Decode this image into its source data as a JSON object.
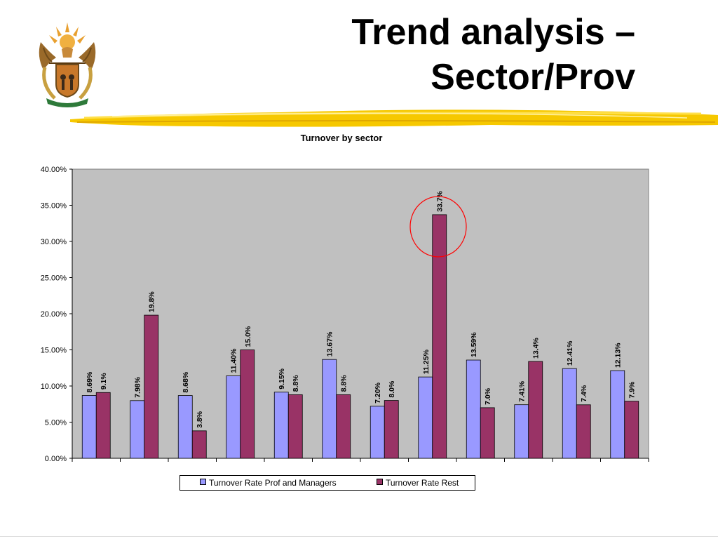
{
  "slide": {
    "title_line1": "Trend analysis –",
    "title_line2": "Sector/Prov"
  },
  "decor": {
    "logo_icon": "south-africa-coat-of-arms-icon",
    "brush_icon": "yellow-brush-stroke-icon",
    "highlight_icon": "red-circle-highlight-icon"
  },
  "chart_data": {
    "type": "bar",
    "title": "Turnover by sector",
    "xlabel": "",
    "ylabel": "",
    "ylim": [
      0,
      40
    ],
    "yticks": [
      0,
      5,
      10,
      15,
      20,
      25,
      30,
      35,
      40
    ],
    "ytick_labels": [
      "0.00%",
      "5.00%",
      "10.00%",
      "15.00%",
      "20.00%",
      "25.00%",
      "30.00%",
      "35.00%",
      "40.00%"
    ],
    "categories": [
      "",
      "",
      "",
      "",
      "",
      "",
      "",
      "",
      "",
      "",
      "",
      ""
    ],
    "grid": false,
    "plot_background": "#c0c0c0",
    "legend_position": "bottom",
    "highlight_category_index": 7,
    "series": [
      {
        "name": "Turnover Rate Prof and Managers",
        "color": "#9999ff",
        "values": [
          8.69,
          7.98,
          8.68,
          11.4,
          9.15,
          13.67,
          7.2,
          11.25,
          13.59,
          7.41,
          12.41,
          12.13
        ],
        "labels": [
          "8.69%",
          "7.98%",
          "8.68%",
          "11.40%",
          "9.15%",
          "13.67%",
          "7.20%",
          "11.25%",
          "13.59%",
          "7.41%",
          "12.41%",
          "12.13%"
        ]
      },
      {
        "name": "Turnover Rate Rest",
        "color": "#993366",
        "values": [
          9.1,
          19.8,
          3.8,
          15.0,
          8.8,
          8.8,
          8.0,
          33.7,
          7.0,
          13.4,
          7.4,
          7.9
        ],
        "labels": [
          "9.1%",
          "19.8%",
          "3.8%",
          "15.0%",
          "8.8%",
          "8.8%",
          "8.0%",
          "33.7%",
          "7.0%",
          "13.4%",
          "7.4%",
          "7.9%"
        ]
      }
    ]
  }
}
